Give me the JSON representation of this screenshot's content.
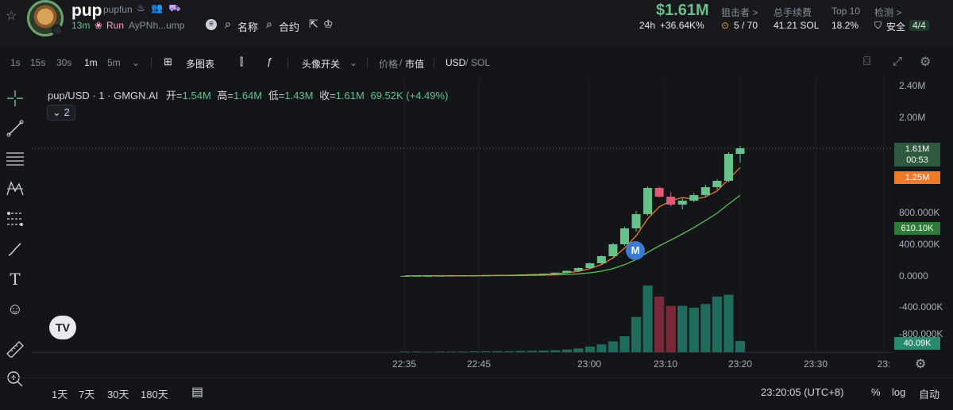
{
  "header": {
    "ticker": "pup",
    "name": "pupfun",
    "badges": "♨ 👥 ⛟",
    "age": "13m",
    "run_label": "Run",
    "address": "AyPNh...ump",
    "link_name": "名称",
    "link_contract": "合约",
    "market_cap": "$1.61M",
    "change_period": "24h",
    "change_value": "+36.64K%",
    "snipers_label": "狙击者 >",
    "snipers_value": "5 / 70",
    "fees_label": "总手续费",
    "fees_value": "41.21 SOL",
    "top10_label": "Top 10",
    "top10_value": "18.2%",
    "check_label": "检测 >",
    "check_value": "安全",
    "check_badge": "4/4"
  },
  "toolbar": {
    "intervals": [
      "1s",
      "15s",
      "30s",
      "1m",
      "5m"
    ],
    "active_interval": "1m",
    "multi_chart": "多图表",
    "avatar_toggle": "头像开关",
    "price_label": "价格",
    "mcap_label": "市值",
    "usd_label": "USD",
    "sol_label": "SOL"
  },
  "legend": {
    "symbol": "pup/USD · 1 · GMGN.AI",
    "open_label": "开=",
    "open": "1.54M",
    "high_label": "高=",
    "high": "1.64M",
    "low_label": "低=",
    "low": "1.43M",
    "close_label": "收=",
    "close": "1.61M",
    "change": "69.52K (+4.49%)",
    "collapse_count": "2"
  },
  "marker_label": "M",
  "y_ticks": [
    "2.40M",
    "2.00M",
    "800.000K",
    "400.000K",
    "0.0000",
    "-400.000K",
    "-800.000K"
  ],
  "price_tags": {
    "last": "1.61M",
    "countdown": "00:53",
    "ma1": "1.25M",
    "ma2": "610.10K",
    "volume": "40.09K"
  },
  "x_ticks": [
    "22:35",
    "22:45",
    "23:00",
    "23:10",
    "23:20",
    "23:30",
    "23:"
  ],
  "bottom": {
    "ranges": [
      "1天",
      "7天",
      "30天",
      "180天"
    ],
    "clock": "23:20:05 (UTC+8)",
    "percent": "%",
    "log": "log",
    "auto": "自动"
  },
  "colors": {
    "up": "#66c28a",
    "down": "#e05a75",
    "ma_fast": "#f07a2a",
    "ma_slow": "#5fbf58",
    "volume_up": "#1f6b5e",
    "volume_down": "#7a2a37"
  },
  "chart_data": {
    "type": "candlestick",
    "unit": "USD market cap (K)",
    "candles": [
      {
        "o": 0,
        "h": 2,
        "l": -1,
        "c": 1
      },
      {
        "o": 1,
        "h": 3,
        "l": 0,
        "c": 2
      },
      {
        "o": 2,
        "h": 3,
        "l": 1,
        "c": 2
      },
      {
        "o": 2,
        "h": 4,
        "l": 1,
        "c": 3
      },
      {
        "o": 3,
        "h": 5,
        "l": 2,
        "c": 4
      },
      {
        "o": 4,
        "h": 6,
        "l": 3,
        "c": 5
      },
      {
        "o": 5,
        "h": 7,
        "l": 4,
        "c": 6
      },
      {
        "o": 6,
        "h": 9,
        "l": 5,
        "c": 8
      },
      {
        "o": 8,
        "h": 11,
        "l": 7,
        "c": 10
      },
      {
        "o": 10,
        "h": 14,
        "l": 9,
        "c": 13
      },
      {
        "o": 13,
        "h": 18,
        "l": 12,
        "c": 17
      },
      {
        "o": 17,
        "h": 25,
        "l": 16,
        "c": 23
      },
      {
        "o": 23,
        "h": 32,
        "l": 21,
        "c": 30
      },
      {
        "o": 30,
        "h": 45,
        "l": 28,
        "c": 42
      },
      {
        "o": 42,
        "h": 70,
        "l": 40,
        "c": 65
      },
      {
        "o": 65,
        "h": 110,
        "l": 60,
        "c": 100
      },
      {
        "o": 100,
        "h": 170,
        "l": 95,
        "c": 160
      },
      {
        "o": 160,
        "h": 260,
        "l": 150,
        "c": 250
      },
      {
        "o": 250,
        "h": 420,
        "l": 240,
        "c": 400
      },
      {
        "o": 400,
        "h": 620,
        "l": 380,
        "c": 600
      },
      {
        "o": 600,
        "h": 820,
        "l": 560,
        "c": 780
      },
      {
        "o": 780,
        "h": 1130,
        "l": 760,
        "c": 1110
      },
      {
        "o": 1110,
        "h": 1130,
        "l": 990,
        "c": 1000
      },
      {
        "o": 1000,
        "h": 1060,
        "l": 880,
        "c": 900
      },
      {
        "o": 900,
        "h": 980,
        "l": 840,
        "c": 950
      },
      {
        "o": 950,
        "h": 1050,
        "l": 930,
        "c": 1020
      },
      {
        "o": 1020,
        "h": 1150,
        "l": 1000,
        "c": 1120
      },
      {
        "o": 1120,
        "h": 1220,
        "l": 1090,
        "c": 1200
      },
      {
        "o": 1200,
        "h": 1560,
        "l": 1180,
        "c": 1540
      },
      {
        "o": 1540,
        "h": 1640,
        "l": 1430,
        "c": 1610
      }
    ],
    "volumes": [
      3,
      3,
      2,
      3,
      3,
      3,
      4,
      4,
      5,
      5,
      6,
      7,
      8,
      10,
      14,
      20,
      30,
      42,
      58,
      86,
      190,
      360,
      300,
      250,
      250,
      240,
      260,
      300,
      310,
      60
    ],
    "ylim": [
      -800,
      2400
    ]
  }
}
